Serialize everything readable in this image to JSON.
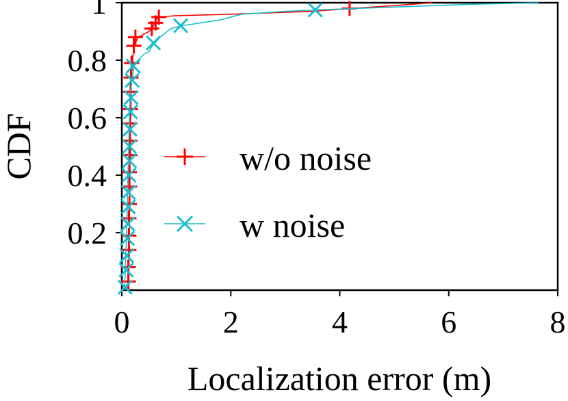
{
  "chart_data": {
    "type": "line",
    "title": "",
    "xlabel": "Localization error (m)",
    "ylabel": "CDF",
    "xlim": [
      0,
      8
    ],
    "ylim": [
      0,
      1
    ],
    "xticks": [
      "0",
      "2",
      "4",
      "6",
      "8"
    ],
    "yticks": [
      "0.2",
      "0.4",
      "0.6",
      "0.8",
      "1"
    ],
    "grid": false,
    "legend_position": "center",
    "series": [
      {
        "name": "w/o noise",
        "color": "#ff0000",
        "marker": "plus",
        "points": [
          [
            0.12,
            0.0
          ],
          [
            0.13,
            0.05
          ],
          [
            0.13,
            0.1
          ],
          [
            0.14,
            0.2
          ],
          [
            0.14,
            0.3
          ],
          [
            0.15,
            0.4
          ],
          [
            0.15,
            0.5
          ],
          [
            0.16,
            0.6
          ],
          [
            0.17,
            0.7
          ],
          [
            0.18,
            0.75
          ],
          [
            0.19,
            0.78
          ],
          [
            0.2,
            0.8
          ],
          [
            0.22,
            0.85
          ],
          [
            0.3,
            0.88
          ],
          [
            0.5,
            0.9
          ],
          [
            0.58,
            0.92
          ],
          [
            0.62,
            0.94
          ],
          [
            0.68,
            0.95
          ],
          [
            1.0,
            0.955
          ],
          [
            2.0,
            0.96
          ],
          [
            3.5,
            0.97
          ],
          [
            4.2,
            0.98
          ],
          [
            5.0,
            0.99
          ],
          [
            5.7,
            1.0
          ]
        ],
        "marker_points": [
          [
            0.12,
            0.03
          ],
          [
            0.12,
            0.08
          ],
          [
            0.13,
            0.14
          ],
          [
            0.13,
            0.19
          ],
          [
            0.13,
            0.25
          ],
          [
            0.14,
            0.3
          ],
          [
            0.14,
            0.36
          ],
          [
            0.14,
            0.41
          ],
          [
            0.15,
            0.47
          ],
          [
            0.15,
            0.52
          ],
          [
            0.15,
            0.58
          ],
          [
            0.16,
            0.63
          ],
          [
            0.16,
            0.69
          ],
          [
            0.17,
            0.74
          ],
          [
            0.18,
            0.79
          ],
          [
            0.22,
            0.85
          ],
          [
            0.25,
            0.88
          ],
          [
            0.55,
            0.91
          ],
          [
            0.62,
            0.93
          ],
          [
            0.68,
            0.95
          ],
          [
            4.18,
            0.98
          ]
        ]
      },
      {
        "name": "w noise",
        "color": "#17becf",
        "marker": "x",
        "points": [
          [
            0.04,
            0.0
          ],
          [
            0.06,
            0.05
          ],
          [
            0.08,
            0.15
          ],
          [
            0.1,
            0.3
          ],
          [
            0.12,
            0.45
          ],
          [
            0.14,
            0.6
          ],
          [
            0.16,
            0.7
          ],
          [
            0.2,
            0.75
          ],
          [
            0.24,
            0.79
          ],
          [
            0.3,
            0.8
          ],
          [
            0.4,
            0.82
          ],
          [
            0.5,
            0.83
          ],
          [
            0.56,
            0.85
          ],
          [
            0.7,
            0.88
          ],
          [
            0.9,
            0.91
          ],
          [
            1.1,
            0.92
          ],
          [
            1.8,
            0.94
          ],
          [
            2.2,
            0.96
          ],
          [
            3.0,
            0.97
          ],
          [
            3.55,
            0.975
          ],
          [
            5.0,
            0.985
          ],
          [
            6.5,
            0.995
          ],
          [
            7.65,
            1.0
          ]
        ],
        "marker_points": [
          [
            0.06,
            0.01
          ],
          [
            0.08,
            0.07
          ],
          [
            0.09,
            0.12
          ],
          [
            0.1,
            0.18
          ],
          [
            0.11,
            0.23
          ],
          [
            0.12,
            0.29
          ],
          [
            0.12,
            0.34
          ],
          [
            0.13,
            0.4
          ],
          [
            0.14,
            0.45
          ],
          [
            0.14,
            0.5
          ],
          [
            0.15,
            0.56
          ],
          [
            0.16,
            0.62
          ],
          [
            0.17,
            0.67
          ],
          [
            0.19,
            0.73
          ],
          [
            0.21,
            0.78
          ],
          [
            0.58,
            0.86
          ],
          [
            1.08,
            0.92
          ],
          [
            3.55,
            0.975
          ]
        ]
      }
    ]
  }
}
